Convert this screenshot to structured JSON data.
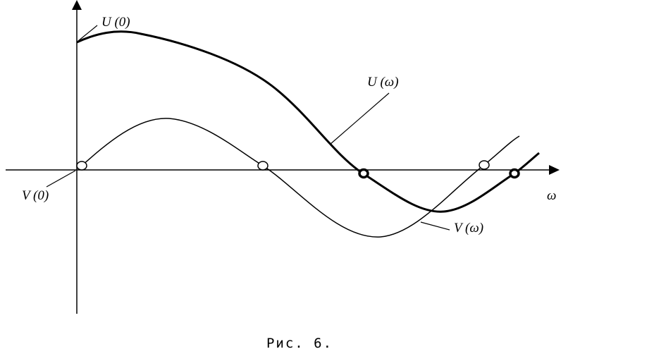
{
  "labels": {
    "u0": "U (0)",
    "u_omega": "U (ω)",
    "v0": "V (0)",
    "v_omega": "V (ω)",
    "axis_x": "ω"
  },
  "caption": "Рис. 6."
}
